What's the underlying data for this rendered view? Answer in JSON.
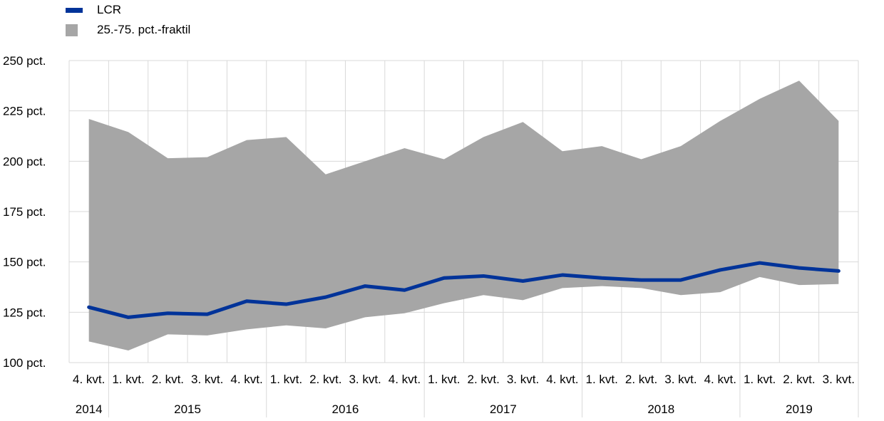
{
  "legend": {
    "lcr_label": "LCR",
    "band_label": "25.-75. pct.-fraktil"
  },
  "colors": {
    "lcr": "#003399",
    "band": "#a6a6a6",
    "grid": "#d9d9d9"
  },
  "chart_data": {
    "type": "area",
    "title": "",
    "xlabel": "",
    "ylabel": "",
    "ylim": [
      100,
      250
    ],
    "y_ticks": [
      100,
      125,
      150,
      175,
      200,
      225,
      250
    ],
    "y_tick_labels": [
      "100 pct.",
      "125 pct.",
      "150 pct.",
      "175 pct.",
      "200 pct.",
      "225 pct.",
      "250 pct."
    ],
    "categories": [
      "4. kvt.",
      "1. kvt.",
      "2. kvt.",
      "3. kvt.",
      "4. kvt.",
      "1. kvt.",
      "2. kvt.",
      "3. kvt.",
      "4. kvt.",
      "1. kvt.",
      "2. kvt.",
      "3. kvt.",
      "4. kvt.",
      "1. kvt.",
      "2. kvt.",
      "3. kvt.",
      "4. kvt.",
      "1. kvt.",
      "2. kvt.",
      "3. kvt."
    ],
    "year_groups": [
      {
        "year": "2014",
        "start": 0,
        "count": 1
      },
      {
        "year": "2015",
        "start": 1,
        "count": 4
      },
      {
        "year": "2016",
        "start": 5,
        "count": 4
      },
      {
        "year": "2017",
        "start": 9,
        "count": 4
      },
      {
        "year": "2018",
        "start": 13,
        "count": 4
      },
      {
        "year": "2019",
        "start": 17,
        "count": 3
      }
    ],
    "series": [
      {
        "name": "LCR",
        "kind": "line",
        "values": [
          127.5,
          122.5,
          124.5,
          124,
          130.5,
          129,
          132.5,
          138,
          136,
          142,
          143,
          140.5,
          143.5,
          142,
          141,
          141,
          146,
          149.5,
          147,
          145.5
        ]
      },
      {
        "name": "25.-75. pct.-fraktil",
        "kind": "band",
        "lower": [
          110.5,
          106,
          114,
          113.5,
          116.5,
          118.5,
          117,
          122.5,
          124.5,
          129.5,
          133.5,
          131,
          137,
          138,
          137,
          133.5,
          135,
          142.5,
          138.5,
          139
        ],
        "upper": [
          221,
          214.5,
          201.5,
          202,
          210.5,
          212,
          193.5,
          200,
          206.5,
          201,
          212,
          219.5,
          205,
          207.5,
          201,
          207.5,
          220,
          231,
          240,
          220
        ]
      }
    ],
    "grid": true,
    "legend_position": "top-left"
  }
}
